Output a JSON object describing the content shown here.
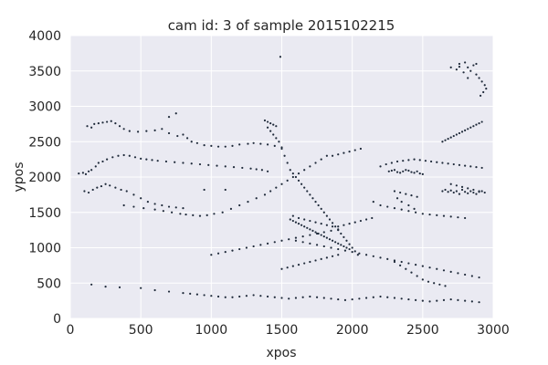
{
  "chart_data": {
    "type": "scatter",
    "title": "cam id: 3 of sample 2015102215",
    "xlabel": "xpos",
    "ylabel": "ypos",
    "xlim": [
      0,
      3000
    ],
    "ylim": [
      0,
      4000
    ],
    "xticks": [
      0,
      500,
      1000,
      1500,
      2000,
      2500,
      3000
    ],
    "yticks": [
      0,
      500,
      1000,
      1500,
      2000,
      2500,
      3000,
      3500,
      4000
    ],
    "grid": true,
    "background_color": "#eaeaf2",
    "grid_color": "#ffffff",
    "marker_color": "#1f2a3a",
    "series": [
      {
        "x": [
          2700,
          2740,
          2760,
          2790,
          2800,
          2820,
          2840,
          2860,
          2880,
          2900,
          2920,
          2940,
          2950,
          2930,
          2910,
          2880,
          2760,
          2820,
          120,
          150,
          170,
          200,
          230,
          260,
          290,
          320,
          350,
          380,
          420,
          480,
          540,
          600,
          650,
          700,
          760,
          800,
          830,
          860,
          900,
          950,
          1000,
          1050,
          1100,
          1150,
          1200,
          1260,
          1300,
          1350,
          1400,
          1450,
          1500,
          60,
          90,
          110,
          130,
          150,
          180,
          200,
          230,
          260,
          300,
          340,
          380,
          420,
          460,
          500,
          540,
          580,
          620,
          680,
          740,
          800,
          860,
          920,
          980,
          1040,
          1100,
          1160,
          1220,
          1280,
          1320,
          1360,
          1400,
          100,
          130,
          160,
          190,
          220,
          250,
          280,
          320,
          360,
          400,
          450,
          500,
          550,
          600,
          650,
          700,
          750,
          800,
          380,
          450,
          520,
          600,
          660,
          720,
          780,
          820,
          870,
          920,
          970,
          1020,
          1080,
          1140,
          1200,
          1260,
          1320,
          1380,
          1420,
          1460,
          1500,
          1540,
          1580,
          1620,
          1660,
          1700,
          1740,
          1780,
          1820,
          1860,
          1900,
          1940,
          1980,
          2020,
          2060,
          1400,
          1420,
          1440,
          1460,
          1480,
          1500,
          1520,
          1540,
          1560,
          1580,
          1600,
          1620,
          1640,
          1660,
          1680,
          1700,
          1720,
          1740,
          1760,
          1780,
          1800,
          1820,
          1840,
          1860,
          1880,
          1900,
          1920,
          1940,
          1960,
          1980,
          2000,
          2020,
          2040,
          1560,
          1580,
          1600,
          1620,
          1640,
          1660,
          1680,
          1700,
          1720,
          1740,
          1760,
          1780,
          1800,
          1820,
          1840,
          1860,
          1880,
          1900,
          1920,
          1940,
          1960,
          1980,
          1580,
          1620,
          1660,
          1700,
          1740,
          1780,
          1820,
          1860,
          1900,
          1940,
          1980,
          2020,
          2060,
          2100,
          2140,
          2260,
          2280,
          2300,
          2320,
          2340,
          2360,
          2380,
          2400,
          2420,
          2440,
          2460,
          2480,
          2500,
          2300,
          2340,
          2380,
          2420,
          2460,
          2320,
          2350,
          2400,
          2440,
          2150,
          2200,
          2250,
          2300,
          2350,
          2400,
          2450,
          2500,
          2550,
          2600,
          2650,
          2700,
          2750,
          2800,
          2200,
          2240,
          2280,
          2320,
          2360,
          2400,
          2440,
          2480,
          2520,
          2560,
          2600,
          2640,
          2680,
          2720,
          2760,
          2800,
          2840,
          2880,
          2920,
          2640,
          2660,
          2680,
          2700,
          2720,
          2740,
          2760,
          2780,
          2800,
          2820,
          2840,
          2860,
          2880,
          2900,
          2920,
          2940,
          2700,
          2740,
          2780,
          2820,
          2860,
          2900,
          2640,
          2660,
          2680,
          2700,
          2720,
          2740,
          2760,
          2780,
          2800,
          2820,
          2840,
          2860,
          2880,
          2900,
          2920,
          1600,
          1650,
          1700,
          1750,
          1800,
          1850,
          1900,
          1950,
          2000,
          2050,
          2100,
          2150,
          2200,
          2250,
          2300,
          2350,
          2400,
          2450,
          2500,
          2550,
          2600,
          2650,
          2700,
          2750,
          2800,
          2850,
          2900,
          2300,
          2340,
          2380,
          2420,
          2460,
          2500,
          2540,
          2580,
          2620,
          2660,
          150,
          250,
          350,
          500,
          600,
          700,
          800,
          850,
          900,
          950,
          1000,
          1050,
          1100,
          1150,
          1200,
          1250,
          1300,
          1350,
          1400,
          1450,
          1500,
          1550,
          1600,
          1650,
          1700,
          1750,
          1800,
          1850,
          1900,
          1950,
          2000,
          2050,
          2100,
          2150,
          2200,
          2250,
          2300,
          2350,
          2400,
          2450,
          2500,
          2550,
          2600,
          2650,
          2700,
          2750,
          2800,
          2850,
          2900,
          1500,
          1540,
          1580,
          1620,
          1660,
          1700,
          1740,
          1780,
          1820,
          1860,
          1900,
          1000,
          1050,
          1100,
          1150,
          1200,
          1250,
          1300,
          1350,
          1400,
          1450,
          1500,
          1550,
          1600,
          1650,
          1700,
          1750,
          1800,
          1850,
          1900,
          950,
          1100,
          1490,
          700,
          750,
          1380,
          1400,
          1420,
          1440,
          1460
        ],
        "y": [
          3550,
          3520,
          3600,
          3480,
          3620,
          3550,
          3500,
          3580,
          3450,
          3400,
          3350,
          3300,
          3250,
          3200,
          3150,
          3600,
          3560,
          3400,
          2720,
          2700,
          2750,
          2760,
          2770,
          2780,
          2790,
          2760,
          2720,
          2680,
          2650,
          2640,
          2650,
          2660,
          2680,
          2620,
          2580,
          2600,
          2550,
          2500,
          2480,
          2450,
          2440,
          2430,
          2430,
          2440,
          2460,
          2470,
          2480,
          2470,
          2460,
          2440,
          2420,
          2050,
          2060,
          2040,
          2080,
          2100,
          2150,
          2200,
          2220,
          2250,
          2280,
          2300,
          2310,
          2300,
          2280,
          2260,
          2250,
          2240,
          2230,
          2220,
          2210,
          2200,
          2190,
          2180,
          2170,
          2160,
          2150,
          2140,
          2130,
          2120,
          2110,
          2100,
          2080,
          1800,
          1780,
          1820,
          1850,
          1870,
          1900,
          1880,
          1850,
          1820,
          1800,
          1750,
          1700,
          1650,
          1620,
          1600,
          1580,
          1570,
          1560,
          1600,
          1580,
          1560,
          1540,
          1520,
          1500,
          1480,
          1470,
          1460,
          1450,
          1460,
          1480,
          1500,
          1550,
          1600,
          1650,
          1700,
          1750,
          1800,
          1850,
          1900,
          1950,
          2000,
          2050,
          2100,
          2150,
          2200,
          2250,
          2300,
          2300,
          2320,
          2340,
          2360,
          2380,
          2400,
          2700,
          2650,
          2600,
          2550,
          2500,
          2400,
          2300,
          2200,
          2100,
          2050,
          2000,
          1950,
          1900,
          1850,
          1800,
          1750,
          1700,
          1650,
          1600,
          1550,
          1500,
          1450,
          1400,
          1350,
          1300,
          1250,
          1200,
          1150,
          1100,
          1050,
          1000,
          950,
          900,
          1400,
          1380,
          1360,
          1340,
          1320,
          1300,
          1280,
          1260,
          1240,
          1220,
          1200,
          1180,
          1160,
          1140,
          1120,
          1100,
          1080,
          1060,
          1040,
          1020,
          1000,
          980,
          1450,
          1420,
          1400,
          1380,
          1360,
          1340,
          1320,
          1300,
          1300,
          1320,
          1340,
          1360,
          1380,
          1400,
          1420,
          2080,
          2090,
          2100,
          2070,
          2060,
          2080,
          2100,
          2090,
          2070,
          2060,
          2080,
          2050,
          2040,
          1800,
          1780,
          1760,
          1740,
          1720,
          1700,
          1650,
          1600,
          1550,
          1650,
          1600,
          1580,
          1560,
          1540,
          1520,
          1500,
          1480,
          1470,
          1460,
          1450,
          1440,
          1430,
          1420,
          2150,
          2180,
          2200,
          2220,
          2230,
          2240,
          2250,
          2240,
          2230,
          2220,
          2210,
          2200,
          2190,
          2180,
          2170,
          2160,
          2150,
          2140,
          2130,
          1800,
          1820,
          1790,
          1810,
          1780,
          1800,
          1760,
          1820,
          1790,
          1770,
          1800,
          1780,
          1760,
          1790,
          1800,
          1780,
          1900,
          1880,
          1860,
          1840,
          1820,
          1800,
          2500,
          2520,
          2540,
          2560,
          2580,
          2600,
          2620,
          2640,
          2660,
          2680,
          2700,
          2720,
          2740,
          2760,
          2780,
          1100,
          1080,
          1060,
          1040,
          1020,
          1000,
          980,
          960,
          940,
          920,
          900,
          880,
          860,
          840,
          820,
          800,
          780,
          760,
          740,
          720,
          700,
          680,
          660,
          640,
          620,
          600,
          580,
          800,
          750,
          700,
          650,
          600,
          550,
          520,
          500,
          480,
          460,
          480,
          450,
          440,
          430,
          400,
          380,
          360,
          350,
          340,
          330,
          320,
          310,
          300,
          300,
          310,
          320,
          330,
          320,
          310,
          300,
          290,
          280,
          290,
          300,
          310,
          300,
          290,
          280,
          270,
          260,
          270,
          280,
          290,
          300,
          310,
          300,
          290,
          280,
          270,
          260,
          250,
          240,
          250,
          260,
          270,
          260,
          250,
          240,
          230,
          700,
          720,
          740,
          760,
          780,
          800,
          820,
          840,
          860,
          880,
          900,
          900,
          920,
          940,
          960,
          980,
          1000,
          1020,
          1040,
          1060,
          1080,
          1100,
          1120,
          1140,
          1160,
          1180,
          1200,
          1220,
          1240,
          1260,
          1820,
          1820,
          3700,
          2850,
          2900,
          2800,
          2780,
          2760,
          2740,
          2720
        ]
      }
    ]
  }
}
